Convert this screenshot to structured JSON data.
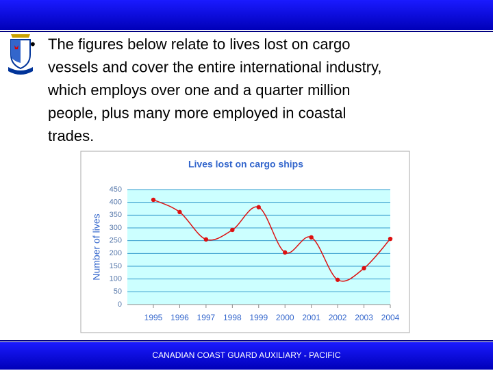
{
  "slide": {
    "bullet_lines": [
      "The figures below relate to lives lost on cargo",
      "vessels and cover the entire international industry,",
      "which employs over one and a quarter million",
      "people, plus many more employed in coastal",
      "trades."
    ],
    "footer": "CANADIAN COAST GUARD AUXILIARY - PACIFIC"
  },
  "chart_data": {
    "type": "line",
    "title": "Lives lost on cargo ships",
    "y_label": "Number of lives",
    "categories": [
      "1995",
      "1996",
      "1997",
      "1998",
      "1999",
      "2000",
      "2001",
      "2002",
      "2003",
      "2004"
    ],
    "series": [
      {
        "name": "Lives lost",
        "color": "#dd1111",
        "values": [
          410,
          362,
          255,
          292,
          381,
          204,
          263,
          97,
          142,
          257
        ]
      }
    ],
    "ylim": [
      0,
      450
    ],
    "yticks": [
      0,
      50,
      100,
      150,
      200,
      250,
      300,
      350,
      400,
      450
    ],
    "grid": true,
    "smooth": true
  }
}
